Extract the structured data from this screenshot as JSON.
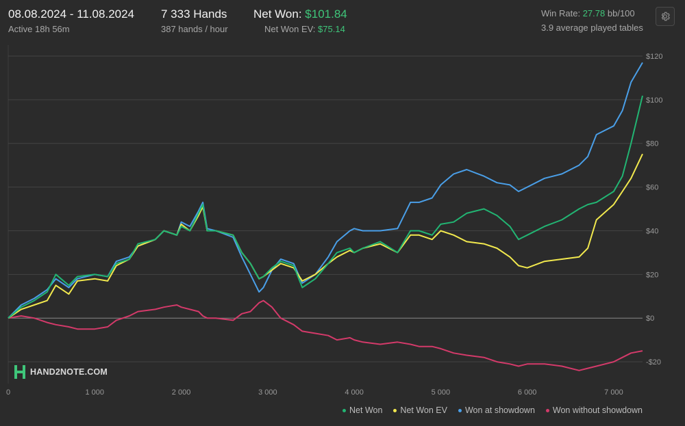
{
  "header": {
    "date_range": "08.08.2024 - 11.08.2024",
    "active": "Active 18h 56m",
    "hands": "7 333 Hands",
    "hands_per_hour": "387 hands / hour",
    "net_won_label": "Net Won:",
    "net_won_value": "$101.84",
    "net_won_ev_label": "Net Won  EV:",
    "net_won_ev_value": "$75.14",
    "win_rate_label": "Win Rate:",
    "win_rate_value": "27.78",
    "win_rate_unit": "bb/100",
    "avg_tables": "3.9 average played tables",
    "positive_color": "#3fc67a"
  },
  "settings_icon": "gear-icon",
  "watermark": "HAND2NOTE.COM",
  "chart_data": {
    "type": "line",
    "xlim": [
      0,
      7333
    ],
    "ylim": [
      -30,
      125
    ],
    "x_ticks": [
      0,
      1000,
      2000,
      3000,
      4000,
      5000,
      6000,
      7000
    ],
    "x_tick_labels": [
      "0",
      "1 000",
      "2 000",
      "3 000",
      "4 000",
      "5 000",
      "6 000",
      "7 000"
    ],
    "y_ticks": [
      120,
      100,
      80,
      60,
      40,
      20,
      0,
      -20
    ],
    "y_tick_labels": [
      "$120",
      "$100",
      "$80",
      "$60",
      "$40",
      "$20",
      "$0",
      "-$20"
    ],
    "grid": true,
    "legend_position": "bottom-right",
    "x": [
      0,
      150,
      300,
      450,
      550,
      700,
      800,
      1000,
      1150,
      1250,
      1400,
      1500,
      1700,
      1800,
      1950,
      2000,
      2100,
      2200,
      2250,
      2300,
      2400,
      2600,
      2700,
      2800,
      2900,
      2950,
      3050,
      3150,
      3300,
      3400,
      3550,
      3700,
      3800,
      3950,
      4000,
      4100,
      4300,
      4500,
      4650,
      4750,
      4900,
      5000,
      5150,
      5300,
      5500,
      5650,
      5800,
      5900,
      6000,
      6200,
      6400,
      6600,
      6700,
      6800,
      7000,
      7100,
      7200,
      7333
    ],
    "series": [
      {
        "name": "Net Won",
        "color": "#22b573",
        "values": [
          0,
          5,
          8,
          12,
          20,
          15,
          19,
          20,
          19,
          25,
          27,
          34,
          36,
          40,
          38,
          42,
          40,
          48,
          52,
          40,
          40,
          38,
          30,
          25,
          18,
          19,
          23,
          26,
          24,
          14,
          18,
          25,
          30,
          32,
          30,
          32,
          35,
          30,
          40,
          40,
          38,
          43,
          44,
          48,
          50,
          47,
          42,
          36,
          38,
          42,
          45,
          50,
          52,
          53,
          58,
          65,
          80,
          101.84
        ]
      },
      {
        "name": "Net Won  EV",
        "color": "#f2e94e",
        "values": [
          0,
          4,
          6,
          8,
          15,
          11,
          17,
          18,
          17,
          24,
          27,
          33,
          36,
          40,
          38,
          43,
          40,
          47,
          51,
          40,
          40,
          38,
          30,
          25,
          18,
          19,
          22,
          25,
          23,
          17,
          20,
          25,
          28,
          31,
          30,
          32,
          34,
          30,
          38,
          38,
          36,
          40,
          38,
          35,
          34,
          32,
          28,
          24,
          23,
          26,
          27,
          28,
          32,
          45,
          52,
          58,
          64,
          75.14
        ]
      },
      {
        "name": "Won at showdown",
        "color": "#4a9fe8",
        "values": [
          0,
          6,
          9,
          13,
          18,
          14,
          18,
          20,
          19,
          26,
          28,
          33,
          36,
          40,
          38,
          44,
          42,
          49,
          53,
          41,
          40,
          37,
          28,
          20,
          12,
          14,
          22,
          27,
          25,
          16,
          20,
          28,
          35,
          40,
          41,
          40,
          40,
          41,
          53,
          53,
          55,
          61,
          66,
          68,
          65,
          62,
          61,
          58,
          60,
          64,
          66,
          70,
          74,
          84,
          88,
          95,
          108,
          117
        ]
      },
      {
        "name": "Won without showdown",
        "color": "#d43a6a",
        "values": [
          0,
          1,
          0,
          -2,
          -3,
          -4,
          -5,
          -5,
          -4,
          -1,
          1,
          3,
          4,
          5,
          6,
          5,
          4,
          3,
          1,
          0,
          0,
          -1,
          2,
          3,
          7,
          8,
          5,
          0,
          -3,
          -6,
          -7,
          -8,
          -10,
          -9,
          -10,
          -11,
          -12,
          -11,
          -12,
          -13,
          -13,
          -14,
          -16,
          -17,
          -18,
          -20,
          -21,
          -22,
          -21,
          -21,
          -22,
          -24,
          -23,
          -22,
          -20,
          -18,
          -16,
          -15
        ]
      }
    ]
  }
}
